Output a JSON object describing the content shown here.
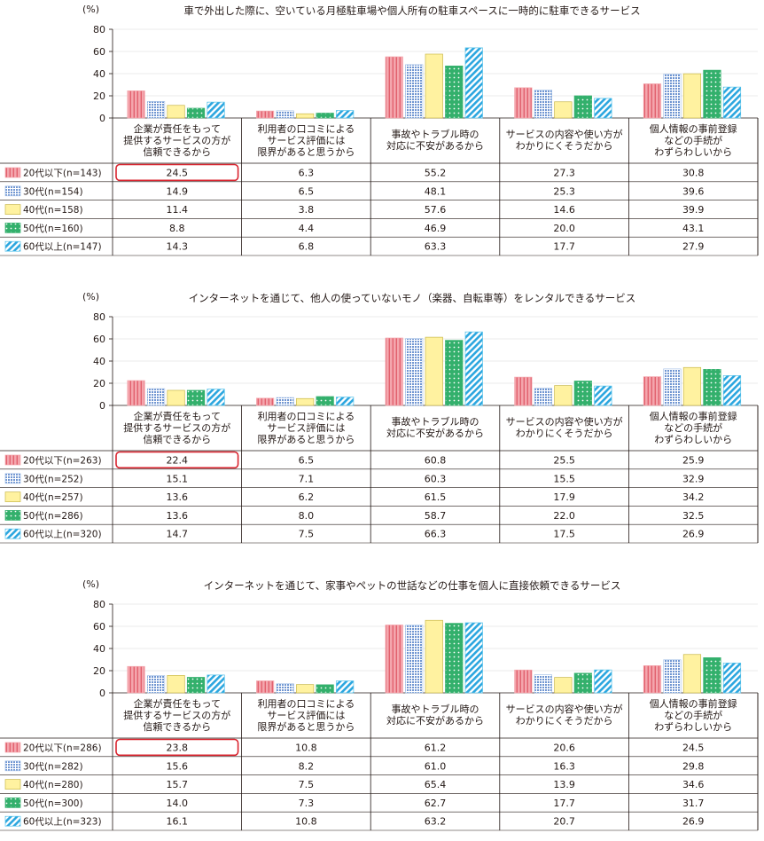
{
  "unit_label": "(%)",
  "colors": {
    "series": [
      "#f4a6ad",
      "#a9c4e8",
      "#fff2a0",
      "#33b06c",
      "#57c3ea"
    ],
    "series_pattern": [
      "vertical-stripes",
      "grid-dots",
      "solid",
      "white-dots",
      "diagonal-stripes"
    ],
    "highlight": "#d9232e",
    "axis": "#231815",
    "grid": "#9e9e9e"
  },
  "chart_data": [
    {
      "type": "bar",
      "title": "車で外出した際に、空いている月極駐車場や個人所有の駐車スペースに一時的に駐車できるサービス",
      "ylim": [
        0,
        80
      ],
      "yticks": [
        0,
        20,
        40,
        60,
        80
      ],
      "categories": [
        [
          "企業が責任をもって",
          "提供するサービスの方が",
          "信頼できるから"
        ],
        [
          "利用者の口コミによる",
          "サービス評価には",
          "限界があると思うから"
        ],
        [
          "事故やトラブル時の",
          "対応に不安があるから"
        ],
        [
          "サービスの内容や使い方が",
          "わかりにくそうだから"
        ],
        [
          "個人情報の事前登録",
          "などの手続が",
          "わずらわしいから"
        ]
      ],
      "series": [
        {
          "name": "20代以下(n=143)",
          "values": [
            24.5,
            6.3,
            55.2,
            27.3,
            30.8
          ]
        },
        {
          "name": "30代(n=154)",
          "values": [
            14.9,
            6.5,
            48.1,
            25.3,
            39.6
          ]
        },
        {
          "name": "40代(n=158)",
          "values": [
            11.4,
            3.8,
            57.6,
            14.6,
            39.9
          ]
        },
        {
          "name": "50代(n=160)",
          "values": [
            8.8,
            4.4,
            46.9,
            20.0,
            43.1
          ]
        },
        {
          "name": "60代以上(n=147)",
          "values": [
            14.3,
            6.8,
            63.3,
            17.7,
            27.9
          ]
        }
      ],
      "table_values": [
        [
          "24.5",
          "6.3",
          "55.2",
          "27.3",
          "30.8"
        ],
        [
          "14.9",
          "6.5",
          "48.1",
          "25.3",
          "39.6"
        ],
        [
          "11.4",
          "3.8",
          "57.6",
          "14.6",
          "39.9"
        ],
        [
          "8.8",
          "4.4",
          "46.9",
          "20.0",
          "43.1"
        ],
        [
          "14.3",
          "6.8",
          "63.3",
          "17.7",
          "27.9"
        ]
      ]
    },
    {
      "type": "bar",
      "title": "インターネットを通じて、他人の使っていないモノ（楽器、自転車等）をレンタルできるサービス",
      "ylim": [
        0,
        80
      ],
      "yticks": [
        0,
        20,
        40,
        60,
        80
      ],
      "categories": [
        [
          "企業が責任をもって",
          "提供するサービスの方が",
          "信頼できるから"
        ],
        [
          "利用者の口コミによる",
          "サービス評価には",
          "限界があると思うから"
        ],
        [
          "事故やトラブル時の",
          "対応に不安があるから"
        ],
        [
          "サービスの内容や使い方が",
          "わかりにくそうだから"
        ],
        [
          "個人情報の事前登録",
          "などの手続が",
          "わずらわしいから"
        ]
      ],
      "series": [
        {
          "name": "20代以下(n=263)",
          "values": [
            22.4,
            6.5,
            60.8,
            25.5,
            25.9
          ]
        },
        {
          "name": "30代(n=252)",
          "values": [
            15.1,
            7.1,
            60.3,
            15.5,
            32.9
          ]
        },
        {
          "name": "40代(n=257)",
          "values": [
            13.6,
            6.2,
            61.5,
            17.9,
            34.2
          ]
        },
        {
          "name": "50代(n=286)",
          "values": [
            13.6,
            8.0,
            58.7,
            22.0,
            32.5
          ]
        },
        {
          "name": "60代以上(n=320)",
          "values": [
            14.7,
            7.5,
            66.3,
            17.5,
            26.9
          ]
        }
      ],
      "table_values": [
        [
          "22.4",
          "6.5",
          "60.8",
          "25.5",
          "25.9"
        ],
        [
          "15.1",
          "7.1",
          "60.3",
          "15.5",
          "32.9"
        ],
        [
          "13.6",
          "6.2",
          "61.5",
          "17.9",
          "34.2"
        ],
        [
          "13.6",
          "8.0",
          "58.7",
          "22.0",
          "32.5"
        ],
        [
          "14.7",
          "7.5",
          "66.3",
          "17.5",
          "26.9"
        ]
      ]
    },
    {
      "type": "bar",
      "title": "インターネットを通じて、家事やペットの世話などの仕事を個人に直接依頼できるサービス",
      "ylim": [
        0,
        80
      ],
      "yticks": [
        0,
        20,
        40,
        60,
        80
      ],
      "categories": [
        [
          "企業が責任をもって",
          "提供するサービスの方が",
          "信頼できるから"
        ],
        [
          "利用者の口コミによる",
          "サービス評価には",
          "限界があると思うから"
        ],
        [
          "事故やトラブル時の",
          "対応に不安があるから"
        ],
        [
          "サービスの内容や使い方が",
          "わかりにくそうだから"
        ],
        [
          "個人情報の事前登録",
          "などの手続が",
          "わずらわしいから"
        ]
      ],
      "series": [
        {
          "name": "20代以下(n=286)",
          "values": [
            23.8,
            10.8,
            61.2,
            20.6,
            24.5
          ]
        },
        {
          "name": "30代(n=282)",
          "values": [
            15.6,
            8.2,
            61.0,
            16.3,
            29.8
          ]
        },
        {
          "name": "40代(n=280)",
          "values": [
            15.7,
            7.5,
            65.4,
            13.9,
            34.6
          ]
        },
        {
          "name": "50代(n=300)",
          "values": [
            14.0,
            7.3,
            62.7,
            17.7,
            31.7
          ]
        },
        {
          "name": "60代以上(n=323)",
          "values": [
            16.1,
            10.8,
            63.2,
            20.7,
            26.9
          ]
        }
      ],
      "table_values": [
        [
          "23.8",
          "10.8",
          "61.2",
          "20.6",
          "24.5"
        ],
        [
          "15.6",
          "8.2",
          "61.0",
          "16.3",
          "29.8"
        ],
        [
          "15.7",
          "7.5",
          "65.4",
          "13.9",
          "34.6"
        ],
        [
          "14.0",
          "7.3",
          "62.7",
          "17.7",
          "31.7"
        ],
        [
          "16.1",
          "10.8",
          "63.2",
          "20.7",
          "26.9"
        ]
      ]
    }
  ]
}
